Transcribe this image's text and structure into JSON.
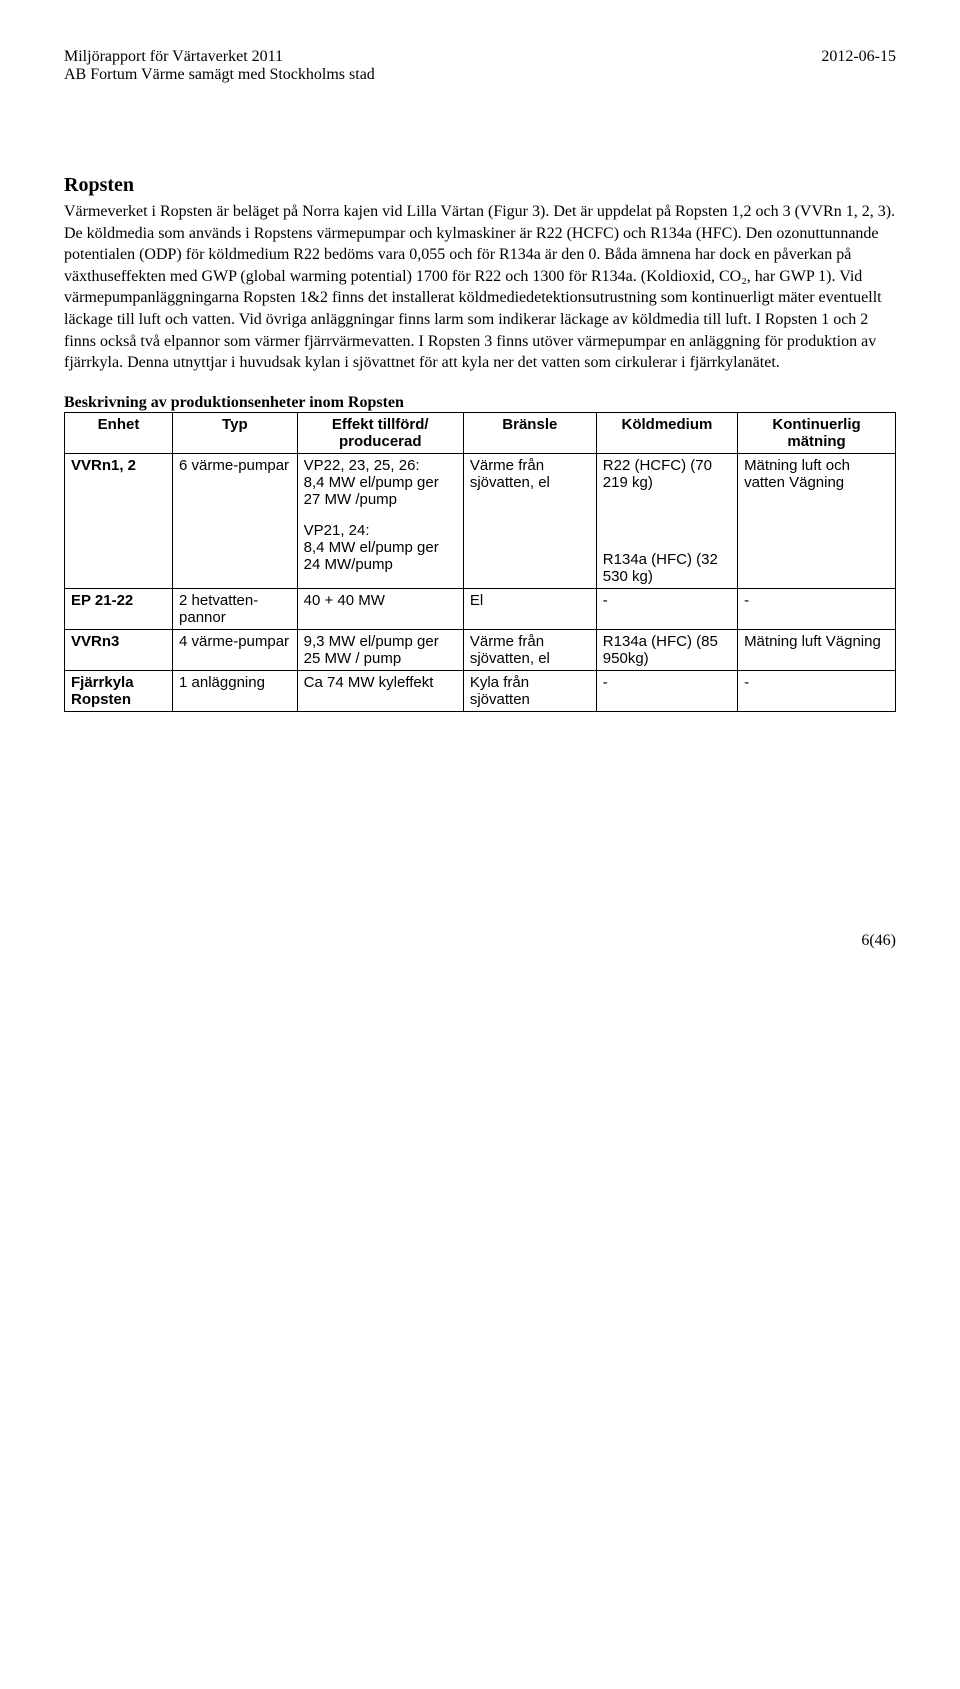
{
  "header": {
    "left_line1": "Miljörapport för Värtaverket 2011",
    "left_line2": "AB Fortum Värme samägt med Stockholms stad",
    "right_date": "2012-06-15"
  },
  "section": {
    "title": "Ropsten",
    "body": "Värmeverket i Ropsten är beläget på Norra kajen vid Lilla Värtan (Figur 3). Det är uppdelat på Ropsten 1,2 och 3 (VVRn 1, 2, 3). De köldmedia som används i Ropstens värmepumpar och kylmaskiner är R22 (HCFC) och R134a (HFC). Den ozonuttunnande potentialen (ODP) för köldmedium R22 bedöms vara 0,055 och för R134a är den 0. Båda ämnena har dock en påverkan på växthuseffekten med GWP (global warming potential) 1700 för R22 och 1300 för R134a. (Koldioxid, CO₂, har GWP 1). Vid värmepumpanläggningarna Ropsten 1&2 finns det installerat köldmediedetektionsutrustning som kontinuerligt mäter eventuellt läckage till luft och vatten. Vid övriga anläggningar finns larm som indikerar läckage av köldmedia till luft. I Ropsten 1 och 2 finns också två elpannor som värmer fjärrvärmevatten. I Ropsten 3 finns utöver värmepumpar en anläggning för produktion av fjärrkyla. Denna utnyttjar i huvudsak kylan i sjövattnet för att kyla ner det vatten som cirkulerar i fjärrkylanätet."
  },
  "table": {
    "caption": "Beskrivning av produktionsenheter inom Ropsten",
    "headers": {
      "enhet": "Enhet",
      "typ": "Typ",
      "effekt": "Effekt tillförd/ producerad",
      "bransle": "Bränsle",
      "koldmedium": "Köldmedium",
      "kontinuerlig": "Kontinuerlig mätning"
    },
    "rows": [
      {
        "enhet": "VVRn1, 2",
        "typ": "6 värme-pumpar",
        "effekt_block1": "VP22, 23, 25, 26:\n8,4 MW el/pump ger\n27 MW /pump",
        "effekt_block2": "VP21, 24:\n8,4 MW el/pump ger 24 MW/pump",
        "bransle": "Värme från sjövatten, el",
        "koldmedium_block1": "R22 (HCFC) (70 219 kg)",
        "koldmedium_block2": "R134a (HFC) (32 530 kg)",
        "kontinuerlig": "Mätning luft och vatten Vägning"
      },
      {
        "enhet": "EP 21-22",
        "typ": "2 hetvatten-pannor",
        "effekt": "40 + 40 MW",
        "bransle": "El",
        "koldmedium": "-",
        "kontinuerlig": "-"
      },
      {
        "enhet": "VVRn3",
        "typ": "4 värme-pumpar",
        "effekt": "9,3 MW el/pump ger 25 MW / pump",
        "bransle": "Värme från sjövatten, el",
        "koldmedium": "R134a (HFC) (85 950kg)",
        "kontinuerlig": "Mätning luft Vägning"
      },
      {
        "enhet": "Fjärrkyla Ropsten",
        "typ": "1 anläggning",
        "effekt": "Ca 74 MW kyleffekt",
        "bransle": "Kyla från sjövatten",
        "koldmedium": "-",
        "kontinuerlig": "-"
      }
    ]
  },
  "footer": {
    "page": "6(46)"
  }
}
